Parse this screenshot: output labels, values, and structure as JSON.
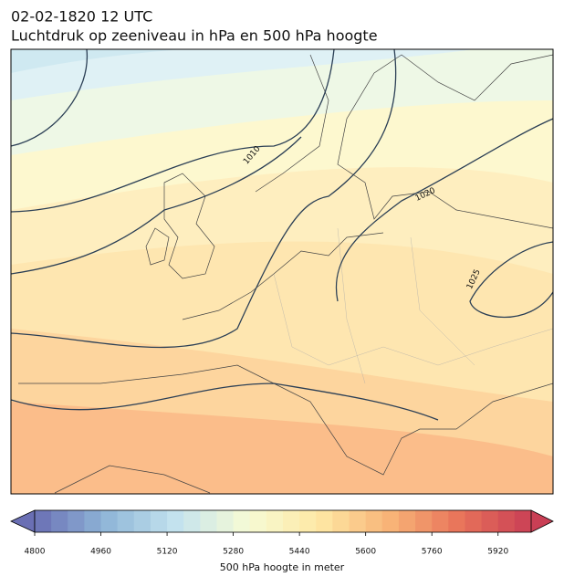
{
  "header": {
    "date": "02-02-1820 12 UTC",
    "title": "Luchtdruk op zeeniveau in hPa en 500 hPa hoogte"
  },
  "map": {
    "isobar_labels": [
      1010,
      1020,
      1025
    ]
  },
  "colorbar": {
    "label": "500 hPa hoogte in meter",
    "range": [
      4800,
      6000
    ],
    "step": 40,
    "ticks": [
      4800,
      4960,
      5120,
      5280,
      5440,
      5600,
      5760,
      5920
    ],
    "colors": [
      "#6a6fb4",
      "#8fb6d8",
      "#c4e3ee",
      "#f6fbd5",
      "#fee8a5",
      "#f8b477",
      "#e8735a",
      "#c93f55"
    ]
  }
}
